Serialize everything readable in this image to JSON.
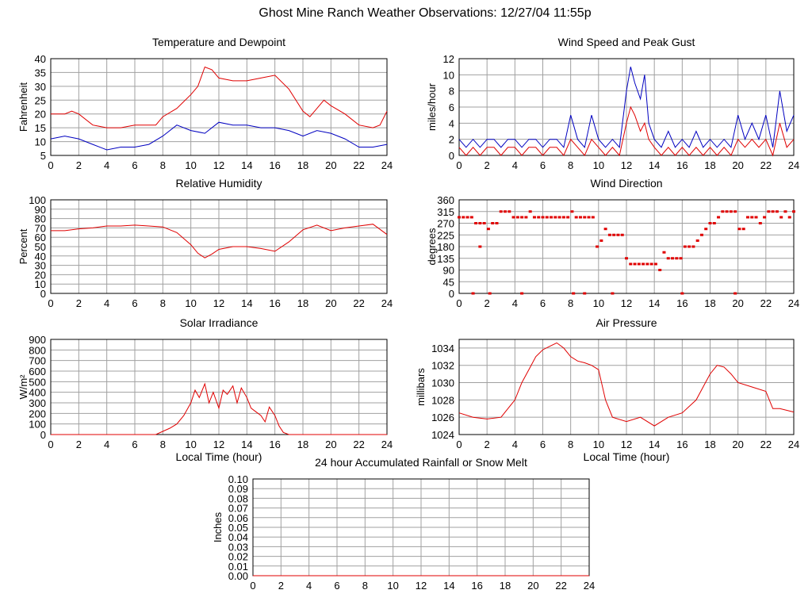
{
  "page": {
    "title": "Ghost Mine Ranch Weather Observations: 12/27/04 11:55p"
  },
  "colors": {
    "temperature": "#e00000",
    "dewpoint": "#0000c0",
    "grid": "#a0a0a0",
    "axis": "#000000"
  },
  "chart_data": [
    {
      "type": "line",
      "title": "Temperature and Dewpoint",
      "ylabel": "Fahrenheit",
      "xlabel": "",
      "xlim": [
        0,
        24
      ],
      "ylim": [
        5,
        40
      ],
      "xticks": [
        0,
        2,
        4,
        6,
        8,
        10,
        12,
        14,
        16,
        18,
        20,
        22,
        24
      ],
      "yticks": [
        5,
        10,
        15,
        20,
        25,
        30,
        35,
        40
      ],
      "grid": true,
      "series": [
        {
          "color": "#e00000",
          "x": [
            0,
            1,
            1.5,
            2,
            3,
            4,
            5,
            6,
            7,
            7.5,
            8,
            9,
            10,
            10.5,
            11,
            11.5,
            12,
            13,
            14,
            15,
            16,
            17,
            18,
            18.5,
            19,
            19.5,
            20,
            21,
            22,
            23,
            23.5,
            24
          ],
          "y": [
            20,
            20,
            21,
            20,
            16,
            15,
            15,
            16,
            16,
            16,
            19,
            22,
            27,
            30,
            37,
            36,
            33,
            32,
            32,
            33,
            34,
            29,
            21,
            19,
            22,
            25,
            23,
            20,
            16,
            15,
            16,
            21
          ]
        },
        {
          "color": "#0000c0",
          "x": [
            0,
            1,
            2,
            3,
            4,
            5,
            6,
            7,
            8,
            9,
            10,
            11,
            12,
            13,
            14,
            15,
            16,
            17,
            18,
            19,
            20,
            21,
            22,
            23,
            24
          ],
          "y": [
            11,
            12,
            11,
            9,
            7,
            8,
            8,
            9,
            12,
            16,
            14,
            13,
            17,
            16,
            16,
            15,
            15,
            14,
            12,
            14,
            13,
            11,
            8,
            8,
            9
          ]
        }
      ]
    },
    {
      "type": "line",
      "title": "Wind Speed and Peak Gust",
      "ylabel": "miles/hour",
      "xlabel": "",
      "xlim": [
        0,
        24
      ],
      "ylim": [
        0,
        12
      ],
      "xticks": [
        0,
        2,
        4,
        6,
        8,
        10,
        12,
        14,
        16,
        18,
        20,
        22,
        24
      ],
      "yticks": [
        0,
        2,
        4,
        6,
        8,
        10,
        12
      ],
      "grid": true,
      "series": [
        {
          "color": "#0000c0",
          "x": [
            0,
            0.5,
            1,
            1.5,
            2,
            2.5,
            3,
            3.5,
            4,
            4.5,
            5,
            5.5,
            6,
            6.5,
            7,
            7.5,
            8,
            8.5,
            9,
            9.5,
            10,
            10.5,
            11,
            11.5,
            12,
            12.3,
            12.6,
            13,
            13.3,
            13.6,
            14,
            14.5,
            15,
            15.5,
            16,
            16.5,
            17,
            17.5,
            18,
            18.5,
            19,
            19.5,
            20,
            20.5,
            21,
            21.5,
            22,
            22.5,
            23,
            23.5,
            24
          ],
          "y": [
            2,
            1,
            2,
            1,
            2,
            2,
            1,
            2,
            2,
            1,
            2,
            2,
            1,
            2,
            2,
            1,
            5,
            2,
            1,
            5,
            2,
            1,
            2,
            1,
            8,
            11,
            9,
            7,
            10,
            4,
            2,
            1,
            3,
            1,
            2,
            1,
            3,
            1,
            2,
            1,
            2,
            1,
            5,
            2,
            4,
            2,
            5,
            1,
            8,
            3,
            5
          ]
        },
        {
          "color": "#e00000",
          "x": [
            0,
            0.5,
            1,
            1.5,
            2,
            2.5,
            3,
            3.5,
            4,
            4.5,
            5,
            5.5,
            6,
            6.5,
            7,
            7.5,
            8,
            8.5,
            9,
            9.5,
            10,
            10.5,
            11,
            11.5,
            12,
            12.3,
            12.6,
            13,
            13.3,
            13.6,
            14,
            14.5,
            15,
            15.5,
            16,
            16.5,
            17,
            17.5,
            18,
            18.5,
            19,
            19.5,
            20,
            20.5,
            21,
            21.5,
            22,
            22.5,
            23,
            23.5,
            24
          ],
          "y": [
            1,
            0,
            1,
            0,
            1,
            1,
            0,
            1,
            1,
            0,
            1,
            1,
            0,
            1,
            1,
            0,
            2,
            1,
            0,
            2,
            1,
            0,
            1,
            0,
            4,
            6,
            5,
            3,
            4,
            2,
            1,
            0,
            1,
            0,
            1,
            0,
            1,
            0,
            1,
            0,
            1,
            0,
            2,
            1,
            2,
            1,
            2,
            0,
            4,
            1,
            2
          ]
        }
      ]
    },
    {
      "type": "line",
      "title": "Relative Humidity",
      "ylabel": "Percent",
      "xlabel": "",
      "xlim": [
        0,
        24
      ],
      "ylim": [
        0,
        100
      ],
      "xticks": [
        0,
        2,
        4,
        6,
        8,
        10,
        12,
        14,
        16,
        18,
        20,
        22,
        24
      ],
      "yticks": [
        0,
        10,
        20,
        30,
        40,
        50,
        60,
        70,
        80,
        90,
        100
      ],
      "grid": true,
      "series": [
        {
          "color": "#e00000",
          "x": [
            0,
            1,
            2,
            3,
            4,
            5,
            6,
            7,
            8,
            9,
            10,
            10.5,
            11,
            11.5,
            12,
            13,
            14,
            15,
            16,
            17,
            18,
            19,
            20,
            21,
            22,
            23,
            24
          ],
          "y": [
            67,
            67,
            69,
            70,
            72,
            72,
            73,
            72,
            71,
            65,
            52,
            43,
            38,
            42,
            47,
            50,
            50,
            48,
            45,
            55,
            68,
            73,
            67,
            70,
            72,
            74,
            63
          ]
        }
      ]
    },
    {
      "type": "scatter",
      "title": "Wind Direction",
      "ylabel": "degrees",
      "xlabel": "",
      "xlim": [
        0,
        24
      ],
      "ylim": [
        0,
        360
      ],
      "xticks": [
        0,
        2,
        4,
        6,
        8,
        10,
        12,
        14,
        16,
        18,
        20,
        22,
        24
      ],
      "yticks": [
        0,
        45,
        90,
        135,
        180,
        225,
        270,
        315,
        360
      ],
      "grid": true,
      "series": [
        {
          "color": "#e00000",
          "x": [
            0,
            0.3,
            0.6,
            0.9,
            1.2,
            1.5,
            1.8,
            2.1,
            2.4,
            2.7,
            3.0,
            3.3,
            3.6,
            3.9,
            4.2,
            4.5,
            4.8,
            5.1,
            5.4,
            5.7,
            6.0,
            6.3,
            6.6,
            6.9,
            7.2,
            7.5,
            7.8,
            8.1,
            8.4,
            8.7,
            9.0,
            9.3,
            9.6,
            9.9,
            10.2,
            10.5,
            10.8,
            11.1,
            11.4,
            11.7,
            12.0,
            12.3,
            12.6,
            12.9,
            13.2,
            13.5,
            13.8,
            14.1,
            14.4,
            14.7,
            15.0,
            15.3,
            15.6,
            15.9,
            16.2,
            16.5,
            16.8,
            17.1,
            17.4,
            17.7,
            18.0,
            18.3,
            18.6,
            18.9,
            19.2,
            19.5,
            19.8,
            20.1,
            20.4,
            20.7,
            21.0,
            21.3,
            21.6,
            21.9,
            22.2,
            22.5,
            22.8,
            23.1,
            23.4,
            23.7,
            24,
            1.0,
            1.5,
            2.2,
            4.5,
            8.2,
            9.0,
            11.0,
            16.0,
            19.8
          ],
          "y": [
            293,
            293,
            293,
            293,
            270,
            270,
            270,
            248,
            270,
            270,
            315,
            315,
            315,
            293,
            293,
            293,
            293,
            315,
            293,
            293,
            293,
            293,
            293,
            293,
            293,
            293,
            293,
            315,
            293,
            293,
            293,
            293,
            293,
            180,
            203,
            248,
            225,
            225,
            225,
            225,
            135,
            113,
            113,
            113,
            113,
            113,
            113,
            113,
            90,
            158,
            135,
            135,
            135,
            135,
            180,
            180,
            180,
            203,
            225,
            248,
            270,
            270,
            293,
            315,
            315,
            315,
            315,
            248,
            248,
            293,
            293,
            293,
            270,
            293,
            315,
            315,
            315,
            293,
            315,
            293,
            315,
            0,
            180,
            0,
            0,
            0,
            0,
            0,
            0,
            0
          ]
        }
      ]
    },
    {
      "type": "area",
      "title": "Solar Irradiance",
      "ylabel": "W/m²",
      "xlabel": "Local Time (hour)",
      "xlim": [
        0,
        24
      ],
      "ylim": [
        0,
        900
      ],
      "xticks": [
        0,
        2,
        4,
        6,
        8,
        10,
        12,
        14,
        16,
        18,
        20,
        22,
        24
      ],
      "yticks": [
        0,
        100,
        200,
        300,
        400,
        500,
        600,
        700,
        800,
        900
      ],
      "grid": true,
      "series": [
        {
          "color": "#e00000",
          "x": [
            0,
            7.5,
            8,
            8.5,
            9,
            9.5,
            10,
            10.3,
            10.6,
            11,
            11.3,
            11.6,
            12,
            12.3,
            12.6,
            13,
            13.3,
            13.6,
            14,
            14.3,
            14.6,
            15,
            15.3,
            15.6,
            16,
            16.3,
            16.6,
            17,
            24
          ],
          "y": [
            0,
            0,
            30,
            60,
            100,
            180,
            300,
            420,
            350,
            480,
            300,
            400,
            250,
            420,
            380,
            460,
            300,
            440,
            350,
            250,
            220,
            180,
            120,
            260,
            180,
            80,
            20,
            0,
            0
          ]
        }
      ]
    },
    {
      "type": "line",
      "title": "Air Pressure",
      "ylabel": "millibars",
      "xlabel": "Local Time (hour)",
      "xlim": [
        0,
        24
      ],
      "ylim": [
        1024,
        1035
      ],
      "xticks": [
        0,
        2,
        4,
        6,
        8,
        10,
        12,
        14,
        16,
        18,
        20,
        22,
        24
      ],
      "yticks": [
        1024,
        1026,
        1028,
        1030,
        1032,
        1034
      ],
      "grid": true,
      "series": [
        {
          "color": "#e00000",
          "x": [
            0,
            1,
            2,
            3,
            3.5,
            4,
            4.5,
            5,
            5.5,
            6,
            6.5,
            7,
            7.5,
            8,
            8.5,
            9,
            9.5,
            10,
            10.5,
            11,
            12,
            13,
            14,
            15,
            16,
            17,
            17.5,
            18,
            18.5,
            19,
            19.5,
            20,
            21,
            22,
            22.5,
            23,
            24
          ],
          "y": [
            1026.5,
            1026,
            1025.8,
            1026,
            1027,
            1028,
            1030,
            1031.5,
            1033,
            1033.8,
            1034.2,
            1034.6,
            1034,
            1033,
            1032.5,
            1032.3,
            1032,
            1031.5,
            1028,
            1026,
            1025.5,
            1026,
            1025,
            1026,
            1026.5,
            1028,
            1029.5,
            1031,
            1032,
            1031.8,
            1031,
            1030,
            1029.5,
            1029,
            1027,
            1027,
            1026.6
          ]
        }
      ]
    },
    {
      "type": "line",
      "title": "24 hour Accumulated Rainfall or Snow Melt",
      "ylabel": "Inches",
      "xlabel": "",
      "xlim": [
        0,
        24
      ],
      "ylim": [
        0,
        0.1
      ],
      "xticks": [
        0,
        2,
        4,
        6,
        8,
        10,
        12,
        14,
        16,
        18,
        20,
        22,
        24
      ],
      "yticks": [
        "0.00",
        "0.01",
        "0.02",
        "0.03",
        "0.04",
        "0.05",
        "0.06",
        "0.07",
        "0.08",
        "0.09",
        "0.10"
      ],
      "grid": true,
      "series": [
        {
          "color": "#e00000",
          "x": [
            0,
            24
          ],
          "y": [
            0,
            0
          ]
        }
      ]
    }
  ]
}
